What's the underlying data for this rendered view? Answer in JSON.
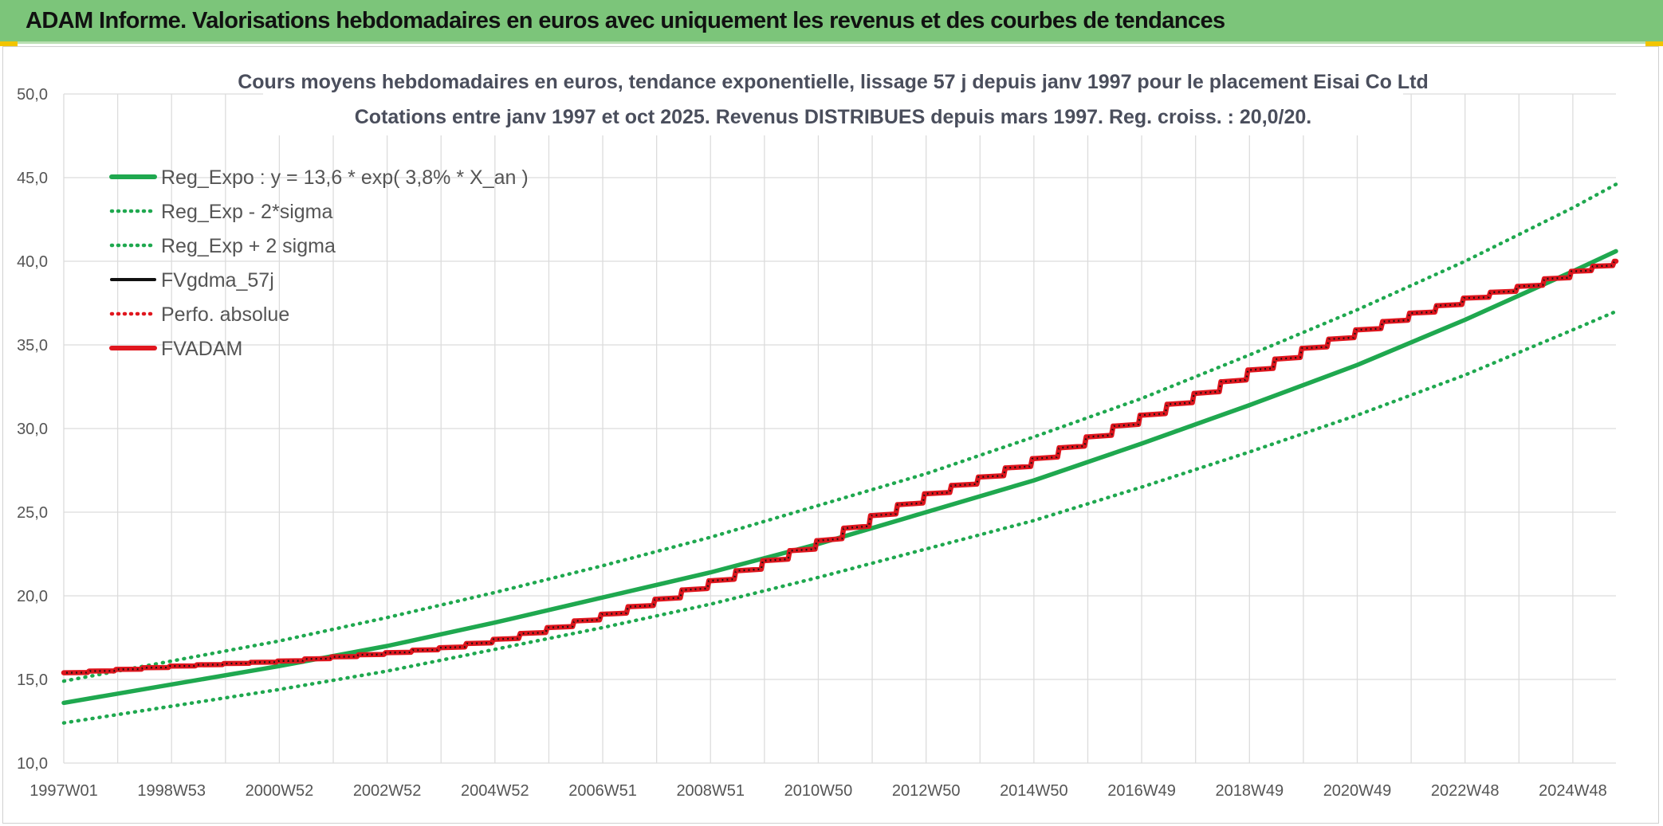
{
  "header": {
    "title": "ADAM Informe. Valorisations hebdomadaires en euros avec uniquement les revenus et des courbes de tendances"
  },
  "chart_data": {
    "type": "line",
    "title_lines": [
      "Cours moyens hebdomadaires en euros, tendance exponentielle, lissage 57 j depuis janv 1997 pour le placement Eisai Co Ltd",
      "Cotations entre janv 1997 et oct 2025. Revenus DISTRIBUES depuis mars 1997. Reg. croiss. : 20,0/20."
    ],
    "xlabel": "",
    "ylabel": "",
    "ylim": [
      10,
      50
    ],
    "y_ticks": [
      "10,0",
      "15,0",
      "20,0",
      "25,0",
      "30,0",
      "35,0",
      "40,0",
      "45,0",
      "50,0"
    ],
    "x_tick_labels": [
      "1997W01",
      "1998W53",
      "2000W52",
      "2002W52",
      "2004W52",
      "2006W51",
      "2008W51",
      "2010W50",
      "2012W50",
      "2014W50",
      "2016W49",
      "2018W49",
      "2020W49",
      "2022W48",
      "2024W48"
    ],
    "xlim_years": [
      0,
      28.8
    ],
    "grid": true,
    "legend_position": "top-left",
    "regression": {
      "a": 13.6,
      "rate": 0.038
    },
    "series": [
      {
        "name": "Reg_Expo : y = 13,6 * exp( 3,8% *  X_an )",
        "color": "#1fa84f",
        "style": "solid",
        "x": [
          0,
          2,
          4,
          6,
          8,
          10,
          12,
          14,
          16,
          18,
          20,
          22,
          24,
          26,
          28,
          28.8
        ],
        "values": [
          13.6,
          14.7,
          15.8,
          17.0,
          18.4,
          19.9,
          21.4,
          23.1,
          25.0,
          26.9,
          29.1,
          31.4,
          33.8,
          36.5,
          39.4,
          40.6
        ]
      },
      {
        "name": "Reg_Exp - 2*sigma",
        "color": "#1fa84f",
        "style": "dotted",
        "x": [
          0,
          2,
          4,
          6,
          8,
          10,
          12,
          14,
          16,
          18,
          20,
          22,
          24,
          26,
          28,
          28.8
        ],
        "values": [
          12.4,
          13.4,
          14.4,
          15.5,
          16.8,
          18.1,
          19.5,
          21.1,
          22.8,
          24.5,
          26.5,
          28.6,
          30.8,
          33.2,
          35.9,
          37.0
        ]
      },
      {
        "name": "Reg_Exp + 2 sigma",
        "color": "#1fa84f",
        "style": "dotted",
        "x": [
          0,
          2,
          4,
          6,
          8,
          10,
          12,
          14,
          16,
          18,
          20,
          22,
          24,
          26,
          28,
          28.8
        ],
        "values": [
          14.9,
          16.1,
          17.3,
          18.7,
          20.2,
          21.8,
          23.5,
          25.4,
          27.3,
          29.5,
          31.8,
          34.4,
          37.1,
          40.0,
          43.2,
          44.6
        ]
      },
      {
        "name": "FVgdma_57j",
        "color": "#111111",
        "style": "solid",
        "x": [
          0,
          2,
          4,
          6,
          7,
          8,
          9,
          10,
          11,
          12,
          13,
          14,
          15,
          16,
          17,
          18,
          19,
          20,
          21,
          22,
          23,
          24,
          25,
          26,
          27,
          28,
          28.8
        ],
        "values": [
          15.4,
          15.8,
          16.1,
          16.6,
          16.9,
          17.4,
          18.1,
          18.9,
          19.8,
          20.9,
          22.1,
          23.3,
          24.8,
          26.1,
          27.1,
          28.2,
          29.5,
          30.8,
          32.1,
          33.5,
          34.8,
          35.9,
          36.9,
          37.8,
          38.5,
          39.4,
          40.0
        ]
      },
      {
        "name": "Perfo. absolue",
        "color": "#e0161e",
        "style": "dotted",
        "x": [
          0,
          2,
          4,
          6,
          7,
          8,
          9,
          10,
          11,
          12,
          13,
          14,
          15,
          16,
          17,
          18,
          19,
          20,
          21,
          22,
          23,
          24,
          25,
          26,
          27,
          28,
          28.8
        ],
        "values": [
          15.4,
          15.8,
          16.1,
          16.6,
          16.9,
          17.4,
          18.1,
          18.9,
          19.8,
          20.9,
          22.1,
          23.3,
          24.8,
          26.1,
          27.1,
          28.2,
          29.5,
          30.8,
          32.1,
          33.5,
          34.8,
          35.9,
          36.9,
          37.8,
          38.5,
          39.4,
          40.0
        ]
      },
      {
        "name": "FVADAM",
        "color": "#e0161e",
        "style": "solid",
        "x": [
          0,
          2,
          4,
          6,
          7,
          8,
          9,
          10,
          11,
          12,
          13,
          14,
          15,
          16,
          17,
          18,
          19,
          20,
          21,
          22,
          23,
          24,
          25,
          26,
          27,
          28,
          28.8
        ],
        "values": [
          15.4,
          15.8,
          16.1,
          16.6,
          16.9,
          17.4,
          18.1,
          18.9,
          19.8,
          20.9,
          22.1,
          23.3,
          24.8,
          26.1,
          27.1,
          28.2,
          29.5,
          30.8,
          32.1,
          33.5,
          34.8,
          35.9,
          36.9,
          37.8,
          38.5,
          39.4,
          40.0
        ]
      }
    ]
  }
}
